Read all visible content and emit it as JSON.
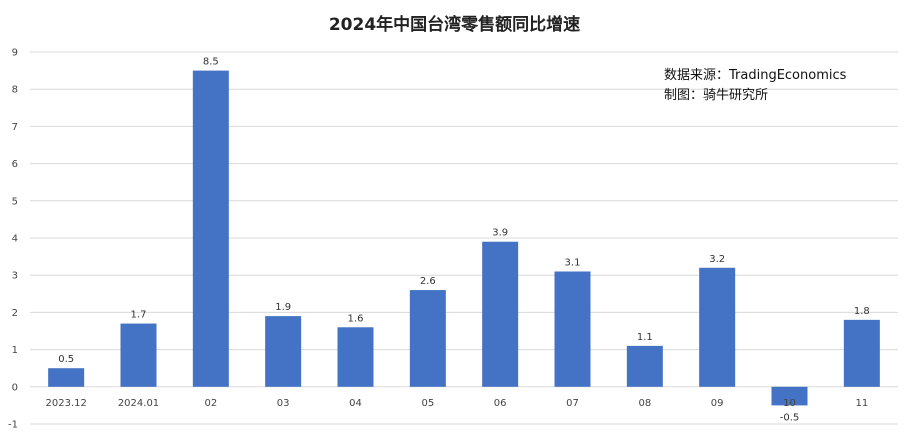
{
  "chart_data": {
    "type": "bar",
    "title": "2024年中国台湾零售额同比增速",
    "categories": [
      "2023.12",
      "2024.01",
      "02",
      "03",
      "04",
      "05",
      "06",
      "07",
      "08",
      "09",
      "10",
      "11"
    ],
    "values": [
      0.5,
      1.7,
      8.5,
      1.9,
      1.6,
      2.6,
      3.9,
      3.1,
      1.1,
      3.2,
      -0.5,
      1.8
    ],
    "data_labels": [
      "0.5",
      "1.7",
      "8.5",
      "1.9",
      "1.6",
      "2.6",
      "3.9",
      "3.1",
      "1.1",
      "3.2",
      "-0.5",
      "1.8"
    ],
    "y_ticks": [
      -1,
      0,
      1,
      2,
      3,
      4,
      5,
      6,
      7,
      8,
      9
    ],
    "ylim": [
      -1,
      9
    ],
    "grid": true,
    "xlabel": "",
    "ylabel": "",
    "bar_color": "#4472C4",
    "grid_color": "#d9d9d9"
  },
  "annotation": {
    "source_line": "数据来源：TradingEconomics",
    "author_line": "制图：骑牛研究所"
  }
}
